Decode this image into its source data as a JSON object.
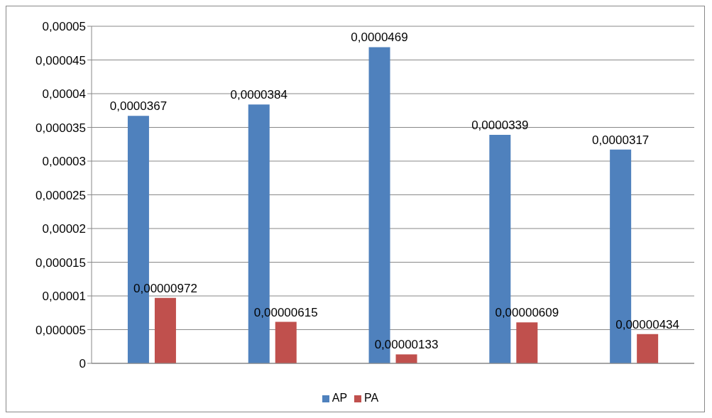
{
  "chart_data": {
    "type": "bar",
    "categories": [
      null,
      null,
      null,
      null,
      null
    ],
    "series": [
      {
        "name": "AP",
        "color": "#4f81bd",
        "values": [
          3.67e-05,
          3.84e-05,
          4.69e-05,
          3.39e-05,
          3.17e-05
        ],
        "value_labels": [
          "0,0000367",
          "0,0000384",
          "0,0000469",
          "0,0000339",
          "0,0000317"
        ]
      },
      {
        "name": "PA",
        "color": "#c0504d",
        "values": [
          9.72e-06,
          6.15e-06,
          1.33e-06,
          6.09e-06,
          4.34e-06
        ],
        "value_labels": [
          "0,00000972",
          "0,00000615",
          "0,00000133",
          "0,00000609",
          "0,00000434"
        ]
      }
    ],
    "ylim": [
      0,
      5e-05
    ],
    "yticks": [
      {
        "value": 0,
        "label": "0"
      },
      {
        "value": 5e-06,
        "label": "0,000005"
      },
      {
        "value": 1e-05,
        "label": "0,00001"
      },
      {
        "value": 1.5e-05,
        "label": "0,000015"
      },
      {
        "value": 2e-05,
        "label": "0,00002"
      },
      {
        "value": 2.5e-05,
        "label": "0,000025"
      },
      {
        "value": 3e-05,
        "label": "0,00003"
      },
      {
        "value": 3.5e-05,
        "label": "0,000035"
      },
      {
        "value": 4e-05,
        "label": "0,00004"
      },
      {
        "value": 4.5e-05,
        "label": "0,000045"
      },
      {
        "value": 5e-05,
        "label": "0,00005"
      }
    ],
    "grid": "y",
    "legend": "bottom",
    "tick_labels": "y"
  }
}
